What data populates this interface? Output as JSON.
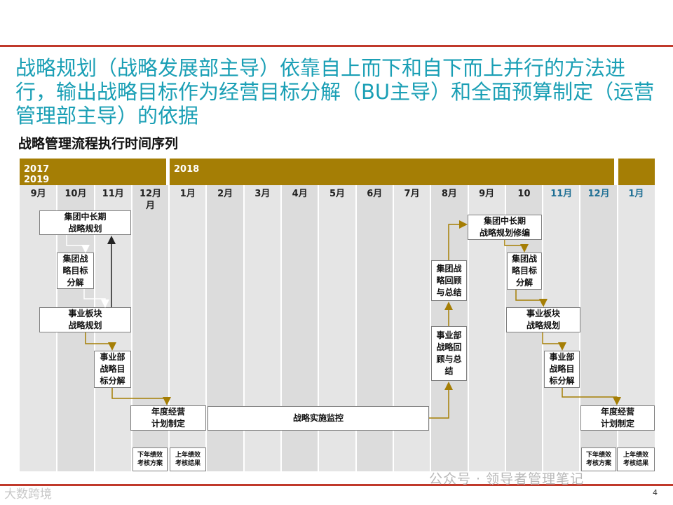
{
  "headline": "战略规划（战略发展部主导）依靠自上而下和自下而上并行的方法进行，输出战略目标作为经营目标分解（BU主导）和全面预算制定（运营管理部主导）的依据",
  "subtitle": "战略管理流程执行时间序列",
  "years": {
    "left": "2017\n2019",
    "right": "2018"
  },
  "months": [
    {
      "label": "9月",
      "color": "#222222"
    },
    {
      "label": "10月",
      "color": "#222222"
    },
    {
      "label": "11月",
      "color": "#222222"
    },
    {
      "label": "12月\n月",
      "color": "#222222"
    },
    {
      "label": "1月",
      "color": "#222222"
    },
    {
      "label": "2月",
      "color": "#222222"
    },
    {
      "label": "3月",
      "color": "#222222"
    },
    {
      "label": "4月",
      "color": "#222222"
    },
    {
      "label": "5月",
      "color": "#222222"
    },
    {
      "label": "6月",
      "color": "#222222"
    },
    {
      "label": "7月",
      "color": "#222222"
    },
    {
      "label": "8月",
      "color": "#222222"
    },
    {
      "label": "9月",
      "color": "#222222"
    },
    {
      "label": "10",
      "color": "#222222"
    },
    {
      "label": "11月",
      "color": "#1f6f94"
    },
    {
      "label": "12月",
      "color": "#1f6f94"
    },
    {
      "label": "1月",
      "color": "#1f6f94"
    }
  ],
  "boxes": {
    "group_plan": "集团中长期\n战略规划",
    "group_goal": "集团战\n略目标\n分解",
    "bu_plan": "事业板块\n战略规划",
    "dept_goal": "事业部\n战略目\n标分解",
    "annual_plan": "年度经营\n计划制定",
    "next_kpi": "下年绩效\n考核方案",
    "last_kpi": "上年绩效\n考核结果",
    "monitor": "战略实施监控",
    "dept_review": "事业部\n战略回\n顾与总\n结",
    "group_review": "集团战\n略回顾\n与总结",
    "group_plan_rev": "集团中长期\n战略规划修编",
    "group_goal_2": "集团战\n略目标\n分解",
    "bu_plan_2": "事业板块\n战略规划",
    "dept_goal_2": "事业部\n战略目\n标分解",
    "annual_plan_2": "年度经营\n计划制定",
    "next_kpi_2": "下年绩效\n考核方案",
    "last_kpi_2": "上年绩效\n考核结果"
  },
  "colors": {
    "accent": "#a57e05",
    "title": "#1a9fb5",
    "rule": "#c0392b"
  },
  "footer": {
    "page_number": "4",
    "watermark": "公众号 · 领导者管理笔记",
    "watermark_left": "大数跨境"
  }
}
